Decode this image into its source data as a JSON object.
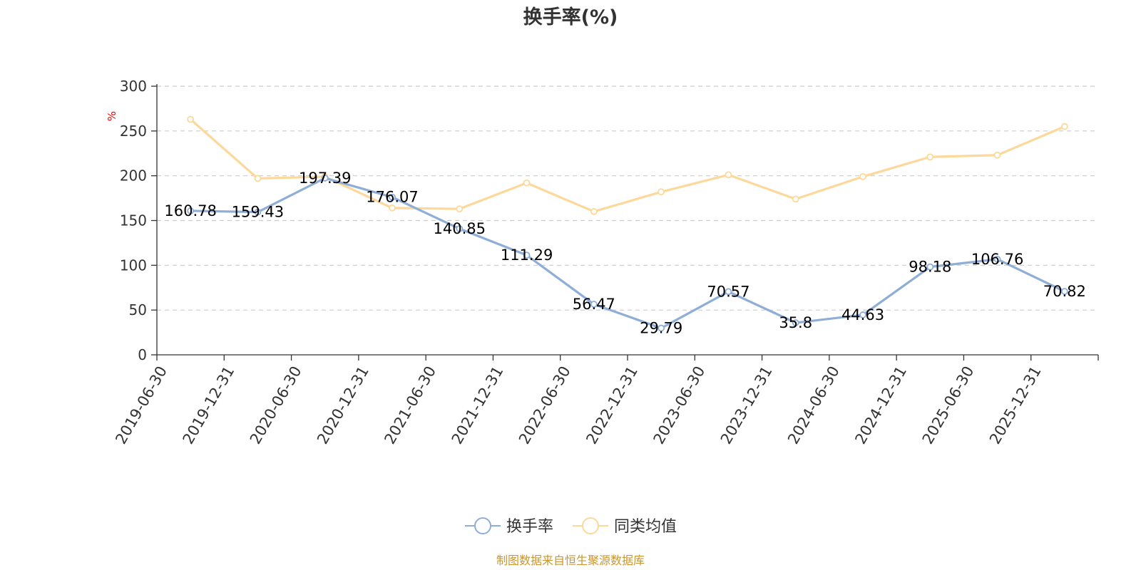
{
  "chart_data": {
    "type": "line",
    "title": "换手率(%)",
    "ylabel": "%",
    "xlabel": "",
    "ylim": [
      0,
      300
    ],
    "yticks": [
      "0",
      "50",
      "100",
      "150",
      "200",
      "250",
      "300"
    ],
    "grid": true,
    "categories": [
      "2019-06-30",
      "2019-12-31",
      "2020-06-30",
      "2020-12-31",
      "2021-06-30",
      "2021-12-31",
      "2022-06-30",
      "2022-12-31",
      "2023-06-30",
      "2023-12-31",
      "2024-06-30",
      "2024-12-31",
      "2025-06-30",
      "2025-12-31"
    ],
    "series": [
      {
        "name": "换手率",
        "color": "#8eaed8",
        "values": [
          160.78,
          159.43,
          197.39,
          176.07,
          140.85,
          111.29,
          56.47,
          29.79,
          70.57,
          35.8,
          44.63,
          98.18,
          106.76,
          70.82
        ],
        "labels": [
          "160.78",
          "159.43",
          "197.39",
          "176.07",
          "140.85",
          "111.29",
          "56.47",
          "29.79",
          "70.57",
          "35.8",
          "44.63",
          "98.18",
          "106.76",
          "70.82"
        ]
      },
      {
        "name": "同类均值",
        "color": "#fcd99a",
        "values": [
          263,
          197,
          199,
          164,
          163,
          192,
          160,
          182,
          201,
          174,
          199,
          221,
          223,
          255
        ]
      }
    ],
    "legend_position": "bottom-center",
    "source": "制图数据来自恒生聚源数据库"
  }
}
